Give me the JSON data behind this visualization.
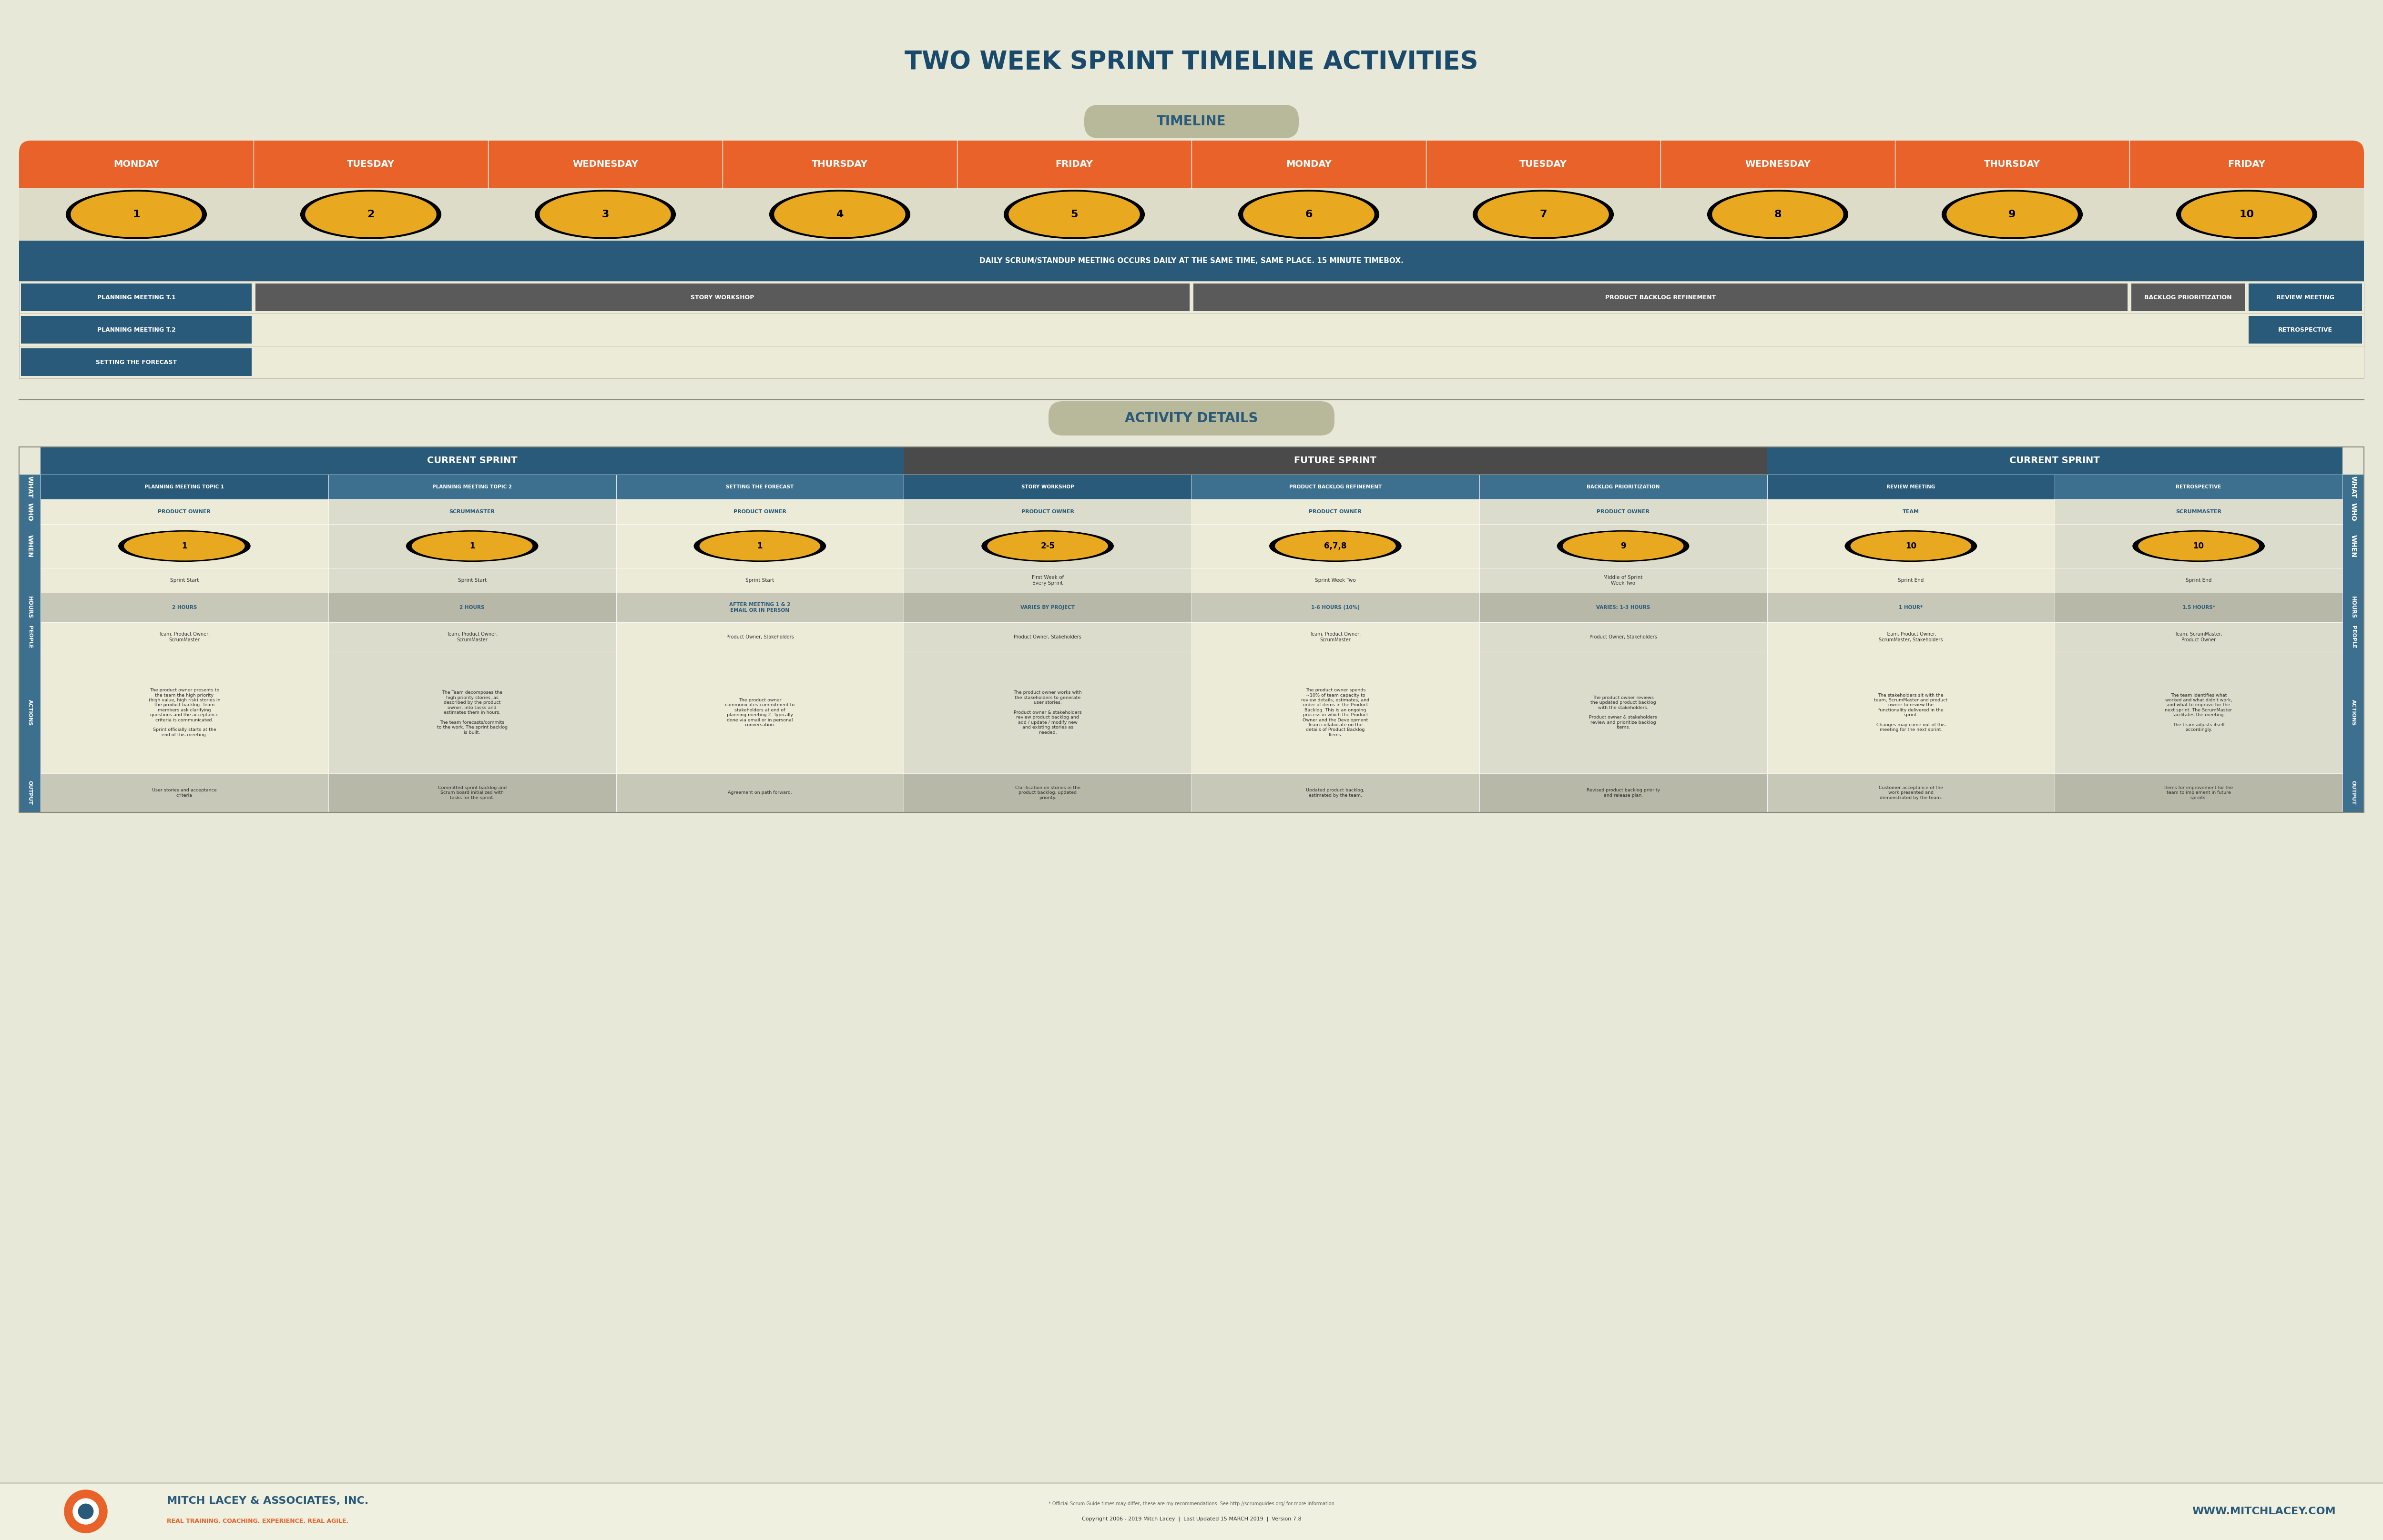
{
  "title": "TWO WEEK SPRINT TIMELINE ACTIVITIES",
  "bg_color": "#e8e8d8",
  "title_color": "#1a4a6b",
  "orange": "#e8622a",
  "dark_blue": "#2a5a7a",
  "medium_blue": "#3d6f8e",
  "gray": "#5a5a5a",
  "darker_gray": "#4a4a4a",
  "gold": "#e8a820",
  "white": "#ffffff",
  "days": [
    "MONDAY",
    "TUESDAY",
    "WEDNESDAY",
    "THURSDAY",
    "FRIDAY",
    "MONDAY",
    "TUESDAY",
    "WEDNESDAY",
    "THURSDAY",
    "FRIDAY"
  ],
  "day_nums": [
    "1",
    "2",
    "3",
    "4",
    "5",
    "6",
    "7",
    "8",
    "9",
    "10"
  ],
  "timeline_label": "TIMELINE",
  "activity_label": "ACTIVITY DETAILS",
  "standup_text": "DAILY SCRUM/STANDUP MEETING OCCURS DAILY AT THE SAME TIME, SAME PLACE. 15 MINUTE TIMEBOX.",
  "what_cols": [
    "PLANNING MEETING TOPIC 1",
    "PLANNING MEETING TOPIC 2",
    "SETTING THE FORECAST",
    "STORY WORKSHOP",
    "PRODUCT BACKLOG REFINEMENT",
    "BACKLOG PRIORITIZATION",
    "REVIEW MEETING",
    "RETROSPECTIVE"
  ],
  "who_text": [
    "PRODUCT OWNER",
    "SCRUMMASTER",
    "PRODUCT OWNER",
    "PRODUCT OWNER",
    "PRODUCT OWNER",
    "PRODUCT OWNER",
    "TEAM",
    "SCRUMMASTER"
  ],
  "badge_nums": [
    "1",
    "1",
    "1",
    "2-5",
    "6,7,8",
    "9",
    "10",
    "10"
  ],
  "when_texts": [
    "Sprint Start",
    "Sprint Start",
    "Sprint Start",
    "First Week of\nEvery Sprint",
    "Sprint Week Two",
    "Middle of Sprint\nWeek Two",
    "Sprint End",
    "Sprint End"
  ],
  "hours_texts": [
    "2 HOURS",
    "2 HOURS",
    "AFTER MEETING 1 & 2\nEMAIL OR IN PERSON",
    "VARIES BY PROJECT",
    "1-6 HOURS (10%)",
    "VARIES: 1-3 HOURS",
    "1 HOUR*",
    "1.5 HOURS*"
  ],
  "people_texts": [
    "Team, Product Owner,\nScrumMaster",
    "Team, Product Owner,\nScrumMaster",
    "Product Owner, Stakeholders",
    "Product Owner, Stakeholders",
    "Team, Product Owner,\nScrumMaster",
    "Product Owner, Stakeholders",
    "Team, Product Owner,\nScrumMaster, Stakeholders",
    "Team, ScrumMaster,\nProduct Owner"
  ],
  "actions_texts": [
    "The product owner presents to\nthe team the high priority\n(high value, high risk) stories in\nthe product backlog. Team\nmembers ask clarifying\nquestions and the acceptance\ncriteria is communicated.\n\nSprint officially starts at the\nend of this meeting.",
    "The Team decomposes the\nhigh priority stories, as\ndescribed by the product\nowner, into tasks and\nestimates them in hours.\n\nThe team forecasts/commits\nto the work. The sprint backlog\nis built.",
    "The product owner\ncommunicates commitment to\nstakeholders at end of\nplanning meeting 2. Typically\ndone via email or in personal\nconversation.",
    "The product owner works with\nthe stakeholders to generate\nuser stories.\n\nProduct owner & stakeholders\nreview product backlog and\nadd / update / modify new\nand existing stories as\nneeded.",
    "The product owner spends\n~10% of team capacity to\nreview details, estimates, and\norder of items in the Product\nBacklog. This is an ongoing\nprocess in which the Product\nOwner and the Development\nTeam collaborate on the\ndetails of Product Backlog\nItems.",
    "The product owner reviews\nthe updated product backlog\nwith the stakeholders.\n\nProduct owner & stakeholders\nreview and prioritize backlog\nitems.",
    "The stakeholders sit with the\nteam, ScrumMaster and product\nowner to review the\nfunctionality delivered in the\nsprint.\n\nChanges may come out of this\nmeeting for the next sprint.",
    "The team identifies what\nworked and what didn't work,\nand what to improve for the\nnext sprint. The ScrumMaster\nfacilitates the meeting.\n\nThe team adjusts itself\naccordingly."
  ],
  "output_texts": [
    "User stories and acceptance\ncriteria",
    "Committed sprint backlog and\nScrum board initialized with\ntasks for the sprint.",
    "Agreement on path forward.",
    "Clarification on stories in the\nproduct backlog, updated\npriority.",
    "Updated product backlog,\nestimated by the team.",
    "Revised product backlog priority\nand release plan.",
    "Customer acceptance of the\nwork presented and\ndemonstrated by the team.",
    "Items for improvement for the\nteam to implement in future\nsprints."
  ],
  "footer_company": "MITCH LACEY & ASSOCIATES, INC.",
  "footer_tagline": "REAL TRAINING. COACHING. EXPERIENCE. REAL AGILE.",
  "footer_footnote": "* Official Scrum Guide times may differ, these are my recommendations. See http://scrumguides.org/ for more information",
  "footer_copyright": "Copyright 2006 - 2019 Mitch Lacey  |  Last Updated 15 MARCH 2019  |  Version 7.8",
  "footer_website": "WWW.MITCHLACEY.COM"
}
